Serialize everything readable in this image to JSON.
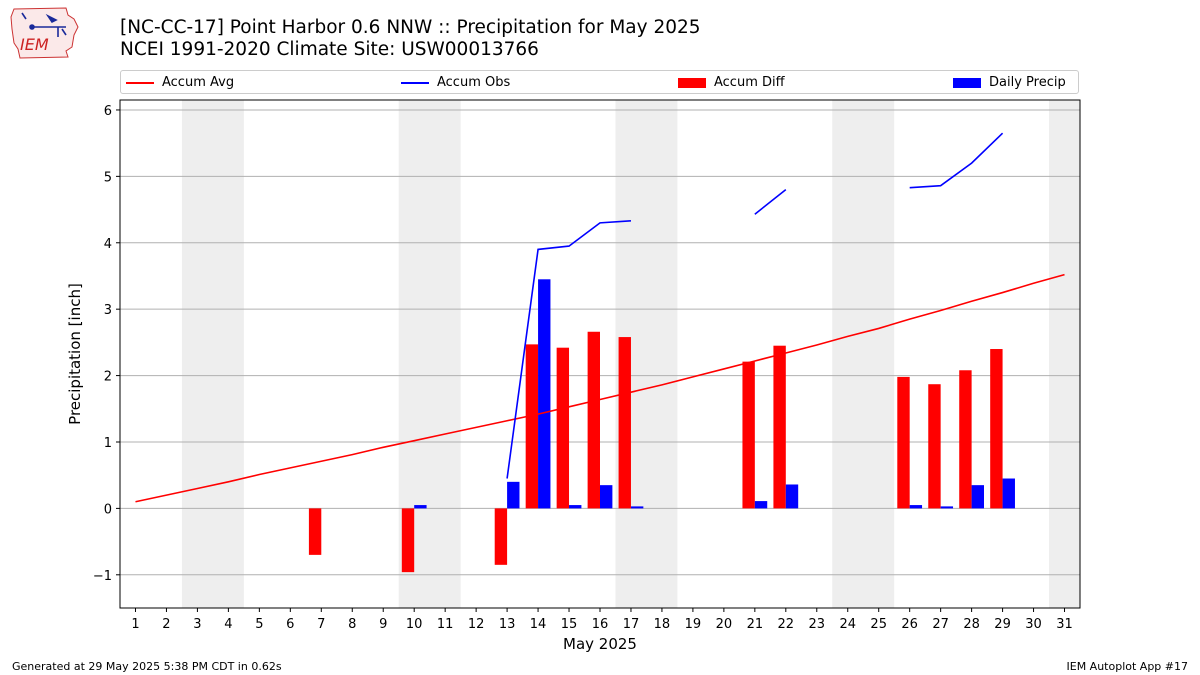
{
  "header": {
    "title_line1": "[NC-CC-17] Point Harbor 0.6 NNW :: Precipitation for May 2025",
    "title_line2": "NCEI 1991-2020 Climate Site: USW00013766"
  },
  "logo": {
    "text": "IEM",
    "icon": "iem-iowa-state-logo"
  },
  "footer": {
    "left": "Generated at 29 May 2025 5:38 PM CDT in 0.62s",
    "right": "IEM Autoplot App #17"
  },
  "legend": {
    "placement": "top, above plot, horizontal",
    "items": [
      {
        "label": "Accum Avg",
        "kind": "line",
        "color": "#ff0000"
      },
      {
        "label": "Accum Obs",
        "kind": "line",
        "color": "#0000ff"
      },
      {
        "label": "Accum Diff",
        "kind": "bar",
        "color": "#ff0000"
      },
      {
        "label": "Daily Precip",
        "kind": "bar",
        "color": "#0000ff"
      }
    ]
  },
  "chart_data": {
    "type": "bar",
    "title": "[NC-CC-17] Point Harbor 0.6 NNW :: Precipitation for May 2025",
    "subtitle": "NCEI 1991-2020 Climate Site: USW00013766",
    "xlabel": "May 2025",
    "ylabel": "Precipitation [inch]",
    "xlim": [
      0.5,
      31.5
    ],
    "ylim": [
      -1.5,
      6.15
    ],
    "yticks": [
      -1,
      0,
      1,
      2,
      3,
      4,
      5,
      6
    ],
    "ytick_labels": [
      "−1",
      "0",
      "1",
      "2",
      "3",
      "4",
      "5",
      "6"
    ],
    "grid": "horizontal",
    "categories": [
      "1",
      "2",
      "3",
      "4",
      "5",
      "6",
      "7",
      "8",
      "9",
      "10",
      "11",
      "12",
      "13",
      "14",
      "15",
      "16",
      "17",
      "18",
      "19",
      "20",
      "21",
      "22",
      "23",
      "24",
      "25",
      "26",
      "27",
      "28",
      "29",
      "30",
      "31"
    ],
    "weekend_shading": [
      [
        2.5,
        4.5
      ],
      [
        9.5,
        11.5
      ],
      [
        16.5,
        18.5
      ],
      [
        23.5,
        25.5
      ],
      [
        30.5,
        31.5
      ]
    ],
    "shade_color": "#eeeeee",
    "series": [
      {
        "name": "Accum Avg",
        "kind": "line",
        "color": "#ff0000",
        "x": [
          1,
          2,
          3,
          4,
          5,
          6,
          7,
          8,
          9,
          10,
          11,
          12,
          13,
          14,
          15,
          16,
          17,
          18,
          19,
          20,
          21,
          22,
          23,
          24,
          25,
          26,
          27,
          28,
          29,
          30,
          31
        ],
        "values": [
          0.1,
          0.2,
          0.3,
          0.4,
          0.51,
          0.61,
          0.71,
          0.81,
          0.92,
          1.02,
          1.12,
          1.22,
          1.32,
          1.42,
          1.53,
          1.64,
          1.75,
          1.86,
          1.98,
          2.1,
          2.22,
          2.34,
          2.46,
          2.59,
          2.71,
          2.85,
          2.98,
          3.12,
          3.25,
          3.39,
          3.52
        ]
      },
      {
        "name": "Accum Obs",
        "kind": "line",
        "color": "#0000ff",
        "segments": [
          {
            "x": [
              13,
              14,
              15,
              16,
              17
            ],
            "values": [
              0.45,
              3.9,
              3.95,
              4.3,
              4.33
            ]
          },
          {
            "x": [
              21,
              22
            ],
            "values": [
              4.43,
              4.8
            ]
          },
          {
            "x": [
              26,
              27,
              28,
              29
            ],
            "values": [
              4.83,
              4.86,
              5.2,
              5.65
            ]
          }
        ]
      },
      {
        "name": "Accum Diff",
        "kind": "bar",
        "color": "#ff0000",
        "x": [
          7,
          10,
          13,
          14,
          15,
          16,
          17,
          21,
          22,
          26,
          27,
          28,
          29
        ],
        "values": [
          -0.7,
          -0.96,
          -0.85,
          2.47,
          2.42,
          2.66,
          2.58,
          2.21,
          2.45,
          1.98,
          1.87,
          2.08,
          2.4
        ]
      },
      {
        "name": "Daily Precip",
        "kind": "bar",
        "color": "#0000ff",
        "x": [
          10,
          13,
          14,
          15,
          16,
          17,
          21,
          22,
          26,
          27,
          28,
          29
        ],
        "values": [
          0.05,
          0.4,
          3.45,
          0.05,
          0.35,
          0.03,
          0.11,
          0.36,
          0.05,
          0.03,
          0.35,
          0.45
        ]
      }
    ]
  }
}
